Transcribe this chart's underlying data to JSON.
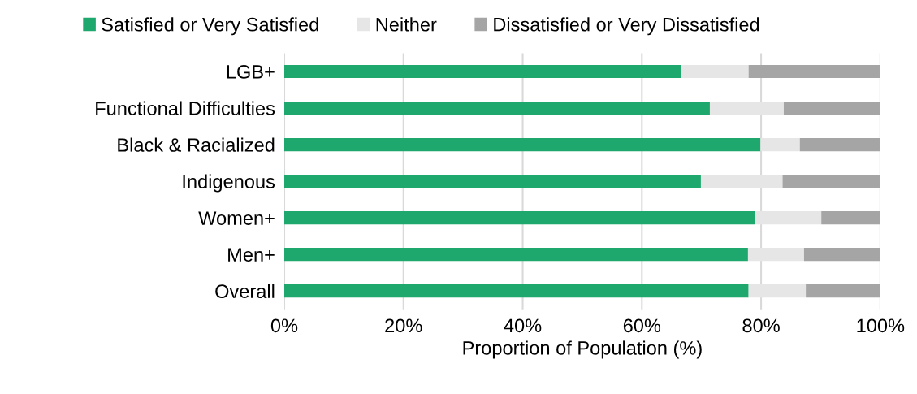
{
  "chart_data": {
    "type": "bar",
    "orientation": "horizontal",
    "stacked": true,
    "xlabel": "Proportion of Population (%)",
    "categories": [
      "LGB+",
      "Functional Difficulties",
      "Black & Racialized",
      "Indigenous",
      "Women+",
      "Men+",
      "Overall"
    ],
    "series": [
      {
        "name": "Satisfied or Very Satisfied",
        "color": "#1fa86e",
        "values": [
          66.5,
          71.4,
          79.9,
          69.9,
          79.0,
          77.8,
          77.9
        ]
      },
      {
        "name": "Neither",
        "color": "#e6e6e6",
        "values": [
          11.4,
          12.4,
          6.6,
          13.7,
          11.1,
          9.4,
          9.6
        ]
      },
      {
        "name": "Dissatisfied or Very Dissatisfied",
        "color": "#a5a5a5",
        "values": [
          22.1,
          16.2,
          13.5,
          16.4,
          9.9,
          12.8,
          12.5
        ]
      }
    ],
    "xlim": [
      0,
      100
    ],
    "xticks": [
      {
        "value": 0,
        "label": "0%"
      },
      {
        "value": 20,
        "label": "20%"
      },
      {
        "value": 40,
        "label": "40%"
      },
      {
        "value": 60,
        "label": "60%"
      },
      {
        "value": 80,
        "label": "80%"
      },
      {
        "value": 100,
        "label": "100%"
      }
    ],
    "grid": "x",
    "legend": "top"
  }
}
